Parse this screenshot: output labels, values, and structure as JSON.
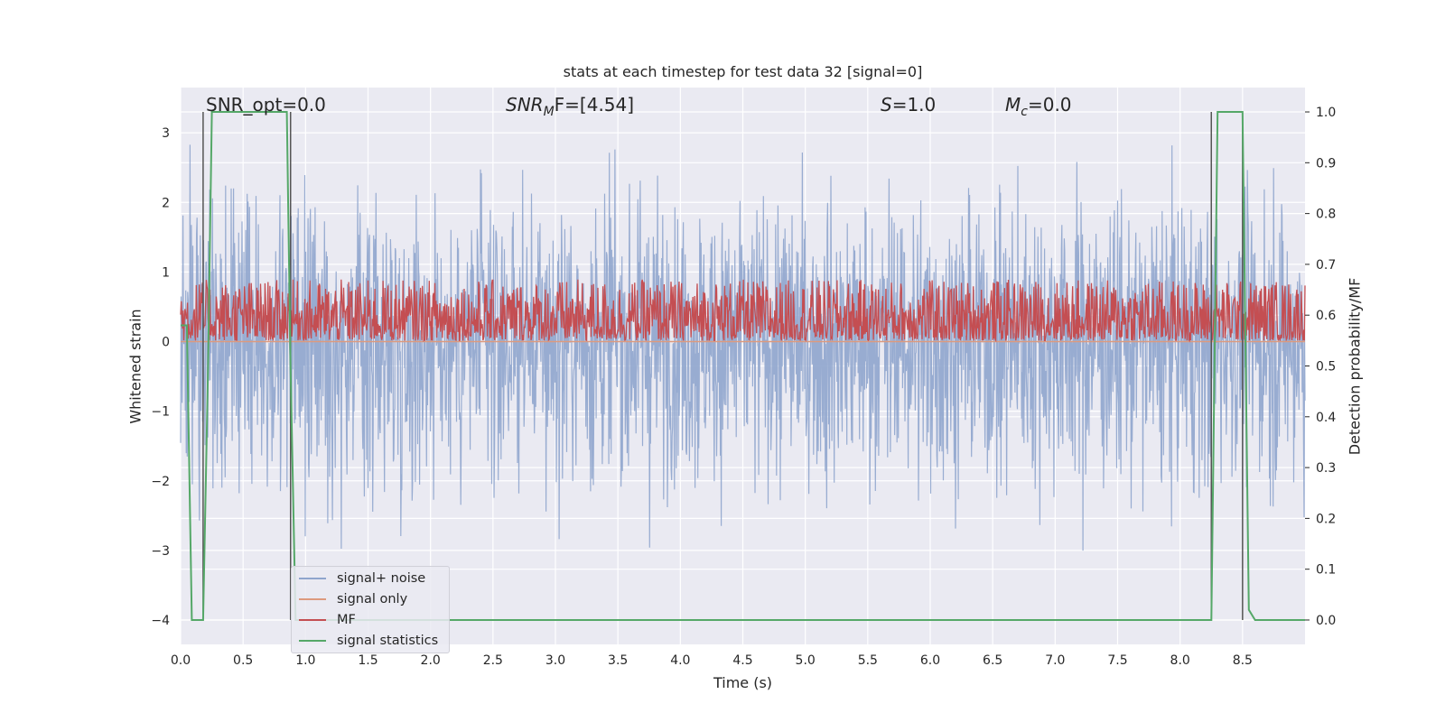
{
  "chart_data": {
    "type": "line",
    "title": "stats at each timestep for test data 32 [signal=0]",
    "xlabel": "Time (s)",
    "ylabel_left": "Whitened strain",
    "ylabel_right": "Detection probability/MF",
    "xlim": [
      0,
      9
    ],
    "ylim_left": [
      -4.35,
      3.65
    ],
    "ylim_right": [
      -0.048,
      1.048
    ],
    "x_ticks": [
      "0.0",
      "0.5",
      "1.0",
      "1.5",
      "2.0",
      "2.5",
      "3.0",
      "3.5",
      "4.0",
      "4.5",
      "5.0",
      "5.5",
      "6.0",
      "6.5",
      "7.0",
      "7.5",
      "8.0",
      "8.5"
    ],
    "y_left_ticks": [
      "3",
      "2",
      "1",
      "0",
      "−1",
      "−2",
      "−3",
      "−4"
    ],
    "y_right_ticks": [
      "1.0",
      "0.9",
      "0.8",
      "0.7",
      "0.6",
      "0.5",
      "0.4",
      "0.3",
      "0.2",
      "0.1",
      "0.0"
    ],
    "grid": true,
    "legend_position": "lower-left",
    "annotations": {
      "snr_opt": "SNR_opt=0.0",
      "snr_mf_base": "SNR",
      "snr_mf_sub": "M",
      "snr_mf_rest": "F=[4.54]",
      "s_var": "S",
      "s_rest": "=1.0",
      "mc_base": "M",
      "mc_sub": "c",
      "mc_rest": "=0.0"
    },
    "series": [
      {
        "name": "signal+ noise",
        "color": "#8fa5cd",
        "axis": "left",
        "description_range": [
          -4.0,
          3.3
        ]
      },
      {
        "name": "signal only",
        "color": "#dd9a7e",
        "axis": "left",
        "values_constant": 0.0
      },
      {
        "name": "MF",
        "color": "#c44e52",
        "axis": "right",
        "range": [
          0.55,
          0.67
        ]
      },
      {
        "name": "signal statistics",
        "color": "#55a868",
        "axis": "right",
        "x": [
          0.0,
          0.05,
          0.09,
          0.13,
          0.18,
          0.22,
          0.25,
          0.85,
          0.88,
          0.92,
          1.0,
          8.25,
          8.3,
          8.5,
          8.55,
          8.6,
          8.7,
          9.0
        ],
        "values": [
          0.58,
          0.58,
          0.0,
          0.0,
          0.0,
          0.5,
          1.0,
          1.0,
          0.5,
          0.0,
          0.0,
          0.0,
          1.0,
          1.0,
          0.02,
          0.0,
          0.0,
          0.0
        ]
      }
    ],
    "vertical_markers": [
      0.18,
      0.88,
      8.25,
      8.5
    ],
    "colors": {
      "plot_bg": "#eaeaf2",
      "grid": "#ffffff",
      "marker": "#555555"
    }
  }
}
